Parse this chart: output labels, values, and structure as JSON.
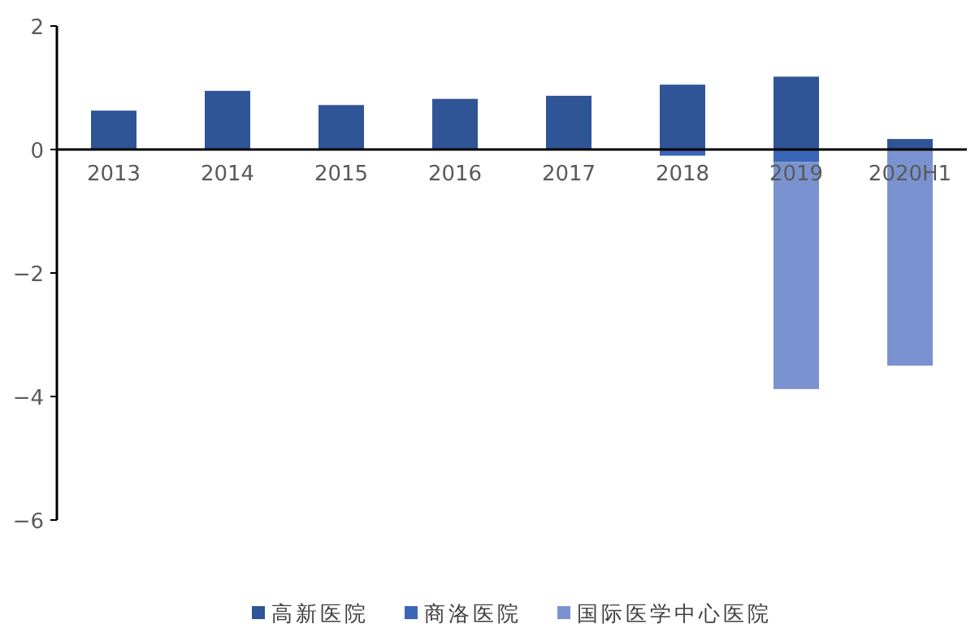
{
  "chart_data": {
    "type": "bar",
    "stacked": true,
    "categories": [
      "2013",
      "2014",
      "2015",
      "2016",
      "2017",
      "2018",
      "2019",
      "2020H1"
    ],
    "series": [
      {
        "name": "高新医院",
        "color": "#2f5597",
        "values": [
          0.63,
          0.95,
          0.72,
          0.82,
          0.87,
          1.05,
          1.18,
          0.17
        ]
      },
      {
        "name": "商洛医院",
        "color": "#3b65b6",
        "values": [
          null,
          null,
          null,
          null,
          null,
          -0.1,
          -0.2,
          null
        ]
      },
      {
        "name": "国际医学中心医院",
        "color": "#7a93d0",
        "values": [
          null,
          null,
          null,
          null,
          null,
          null,
          -3.68,
          -3.5
        ]
      }
    ],
    "ylim": [
      -6,
      2
    ],
    "yticks": [
      -6,
      -4,
      -2,
      0,
      2
    ],
    "grid": false,
    "legend": "bottom"
  }
}
